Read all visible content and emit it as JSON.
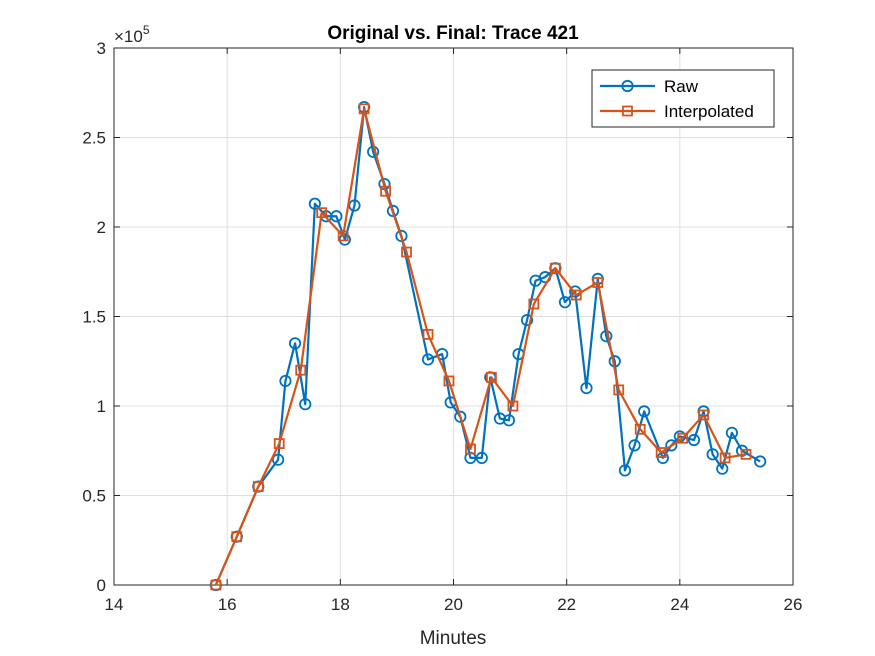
{
  "chart_data": {
    "type": "line",
    "title": "Original vs. Final: Trace 421",
    "xlabel": "Minutes",
    "ylabel": "",
    "xlim": [
      14,
      26
    ],
    "ylim": [
      0,
      300000
    ],
    "xticks": [
      14,
      16,
      18,
      20,
      22,
      24,
      26
    ],
    "xtick_labels": [
      "14",
      "16",
      "18",
      "20",
      "22",
      "24",
      "26"
    ],
    "yticks": [
      0,
      50000,
      100000,
      150000,
      200000,
      250000,
      300000
    ],
    "ytick_labels": [
      "0",
      "0.5",
      "1",
      "1.5",
      "2",
      "2.5",
      "3"
    ],
    "y_exponent_base": "×10",
    "y_exponent_power": "5",
    "grid": true,
    "legend_position": "top-right",
    "series": [
      {
        "name": "Raw",
        "color": "#0072BD",
        "marker": "circle",
        "x": [
          15.8,
          16.17,
          16.55,
          16.9,
          17.03,
          17.2,
          17.38,
          17.55,
          17.75,
          17.93,
          18.08,
          18.25,
          18.42,
          18.58,
          18.78,
          18.93,
          19.08,
          19.55,
          19.8,
          19.95,
          20.12,
          20.3,
          20.5,
          20.65,
          20.82,
          20.98,
          21.15,
          21.3,
          21.45,
          21.62,
          21.8,
          21.97,
          22.15,
          22.35,
          22.55,
          22.7,
          22.85,
          23.03,
          23.2,
          23.37,
          23.7,
          23.85,
          24.0,
          24.25,
          24.42,
          24.58,
          24.75,
          24.92,
          25.1,
          25.42
        ],
        "y": [
          0,
          27000,
          55000,
          70000,
          114000,
          135000,
          101000,
          213000,
          206000,
          206000,
          193000,
          212000,
          267000,
          242000,
          224000,
          209000,
          195000,
          126000,
          129000,
          102000,
          94000,
          71000,
          71000,
          116000,
          93000,
          92000,
          129000,
          148000,
          170000,
          172000,
          177000,
          158000,
          164000,
          110000,
          171000,
          139000,
          125000,
          64000,
          78000,
          97000,
          71000,
          78000,
          83000,
          81000,
          97000,
          73000,
          65000,
          85000,
          75000,
          69000
        ]
      },
      {
        "name": "Interpolated",
        "color": "#D95319",
        "marker": "square",
        "x": [
          15.8,
          16.17,
          16.55,
          16.92,
          17.3,
          17.67,
          18.05,
          18.42,
          18.8,
          19.17,
          19.55,
          19.92,
          20.3,
          20.67,
          21.05,
          21.42,
          21.8,
          22.17,
          22.55,
          22.92,
          23.3,
          23.67,
          24.05,
          24.42,
          24.8,
          25.17
        ],
        "y": [
          0,
          27000,
          55000,
          79000,
          120000,
          208000,
          195000,
          266000,
          220000,
          186000,
          140000,
          114000,
          76000,
          116000,
          100000,
          157000,
          177000,
          162000,
          169000,
          109000,
          87000,
          74000,
          82000,
          95000,
          71000,
          73000
        ]
      }
    ]
  }
}
